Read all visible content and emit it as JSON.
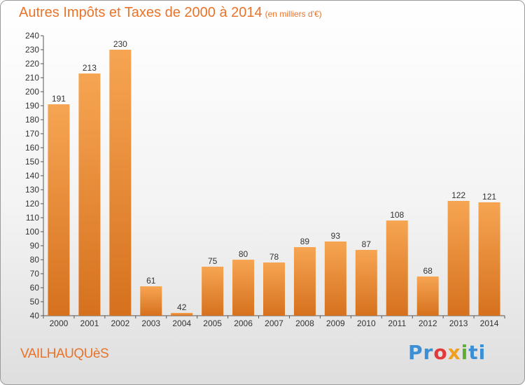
{
  "header": {
    "title": "Autres Impôts et Taxes de 2000 à 2014",
    "subtitle": "(en milliers d'€)"
  },
  "footer": {
    "town": "VAILHAUQUèS",
    "logo_letters": [
      "P",
      "r",
      "o",
      "x",
      "i",
      "ti"
    ]
  },
  "colors": {
    "bar_top": "#f6a552",
    "bar_bottom": "#d6711e",
    "title": "#e8732a"
  },
  "chart_data": {
    "type": "bar",
    "categories": [
      "2000",
      "2001",
      "2002",
      "2003",
      "2004",
      "2005",
      "2006",
      "2007",
      "2008",
      "2009",
      "2010",
      "2011",
      "2012",
      "2013",
      "2014"
    ],
    "values": [
      191,
      213,
      230,
      61,
      42,
      75,
      80,
      78,
      89,
      93,
      87,
      108,
      68,
      122,
      121
    ],
    "ylim": [
      40,
      240
    ],
    "ytick_step": 10,
    "grid": false
  }
}
